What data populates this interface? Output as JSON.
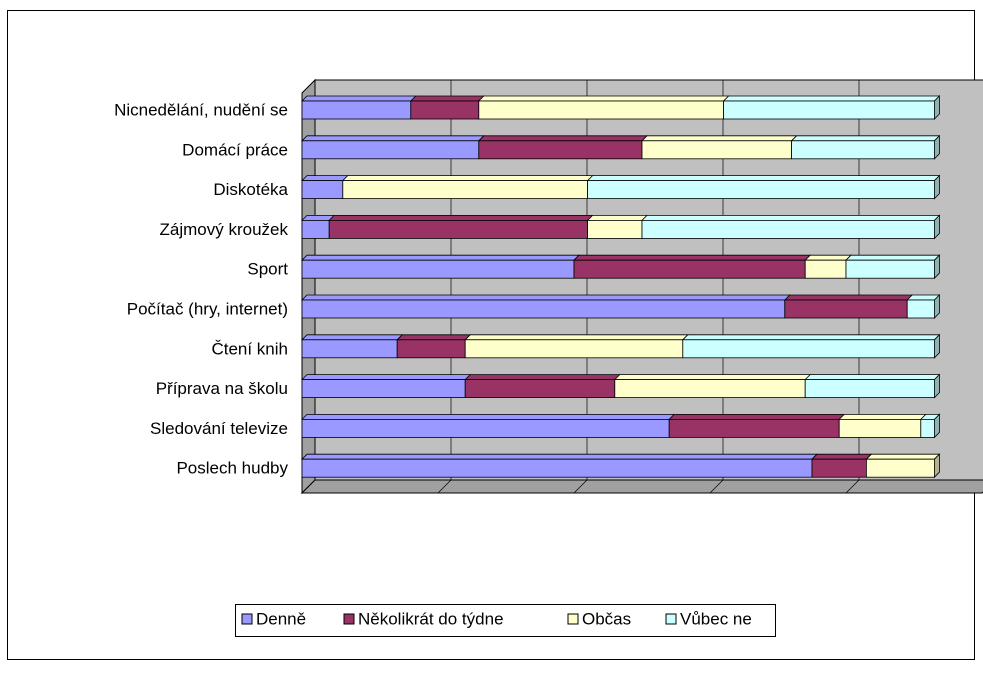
{
  "chart_data": {
    "type": "bar3d_stacked_horizontal",
    "categories": [
      "Nicnedělání, nudění se",
      "Domácí práce",
      "Diskotéka",
      "Zájmový kroužek",
      "Sport",
      "Počítač (hry, internet)",
      "Čtení knih",
      "Příprava na školu",
      "Sledování televize",
      "Poslech hudby"
    ],
    "series": [
      {
        "name": "Denně",
        "color": "#9999ff",
        "values": [
          16,
          26,
          6,
          4,
          40,
          71,
          14,
          24,
          54,
          75
        ]
      },
      {
        "name": "Několikrát do týdne",
        "color": "#993366",
        "values": [
          10,
          24,
          0,
          38,
          34,
          18,
          10,
          22,
          25,
          8
        ]
      },
      {
        "name": "Občas",
        "color": "#ffffcc",
        "values": [
          36,
          22,
          36,
          8,
          6,
          0,
          32,
          28,
          12,
          10
        ]
      },
      {
        "name": "Vůbec ne",
        "color": "#ccffff",
        "values": [
          31,
          21,
          51,
          43,
          13,
          4,
          37,
          19,
          2,
          0
        ]
      }
    ],
    "xlim": [
      0,
      100
    ],
    "xticks": [
      0,
      20,
      40,
      60,
      80,
      100
    ],
    "grid": true,
    "legend": "bottom"
  }
}
